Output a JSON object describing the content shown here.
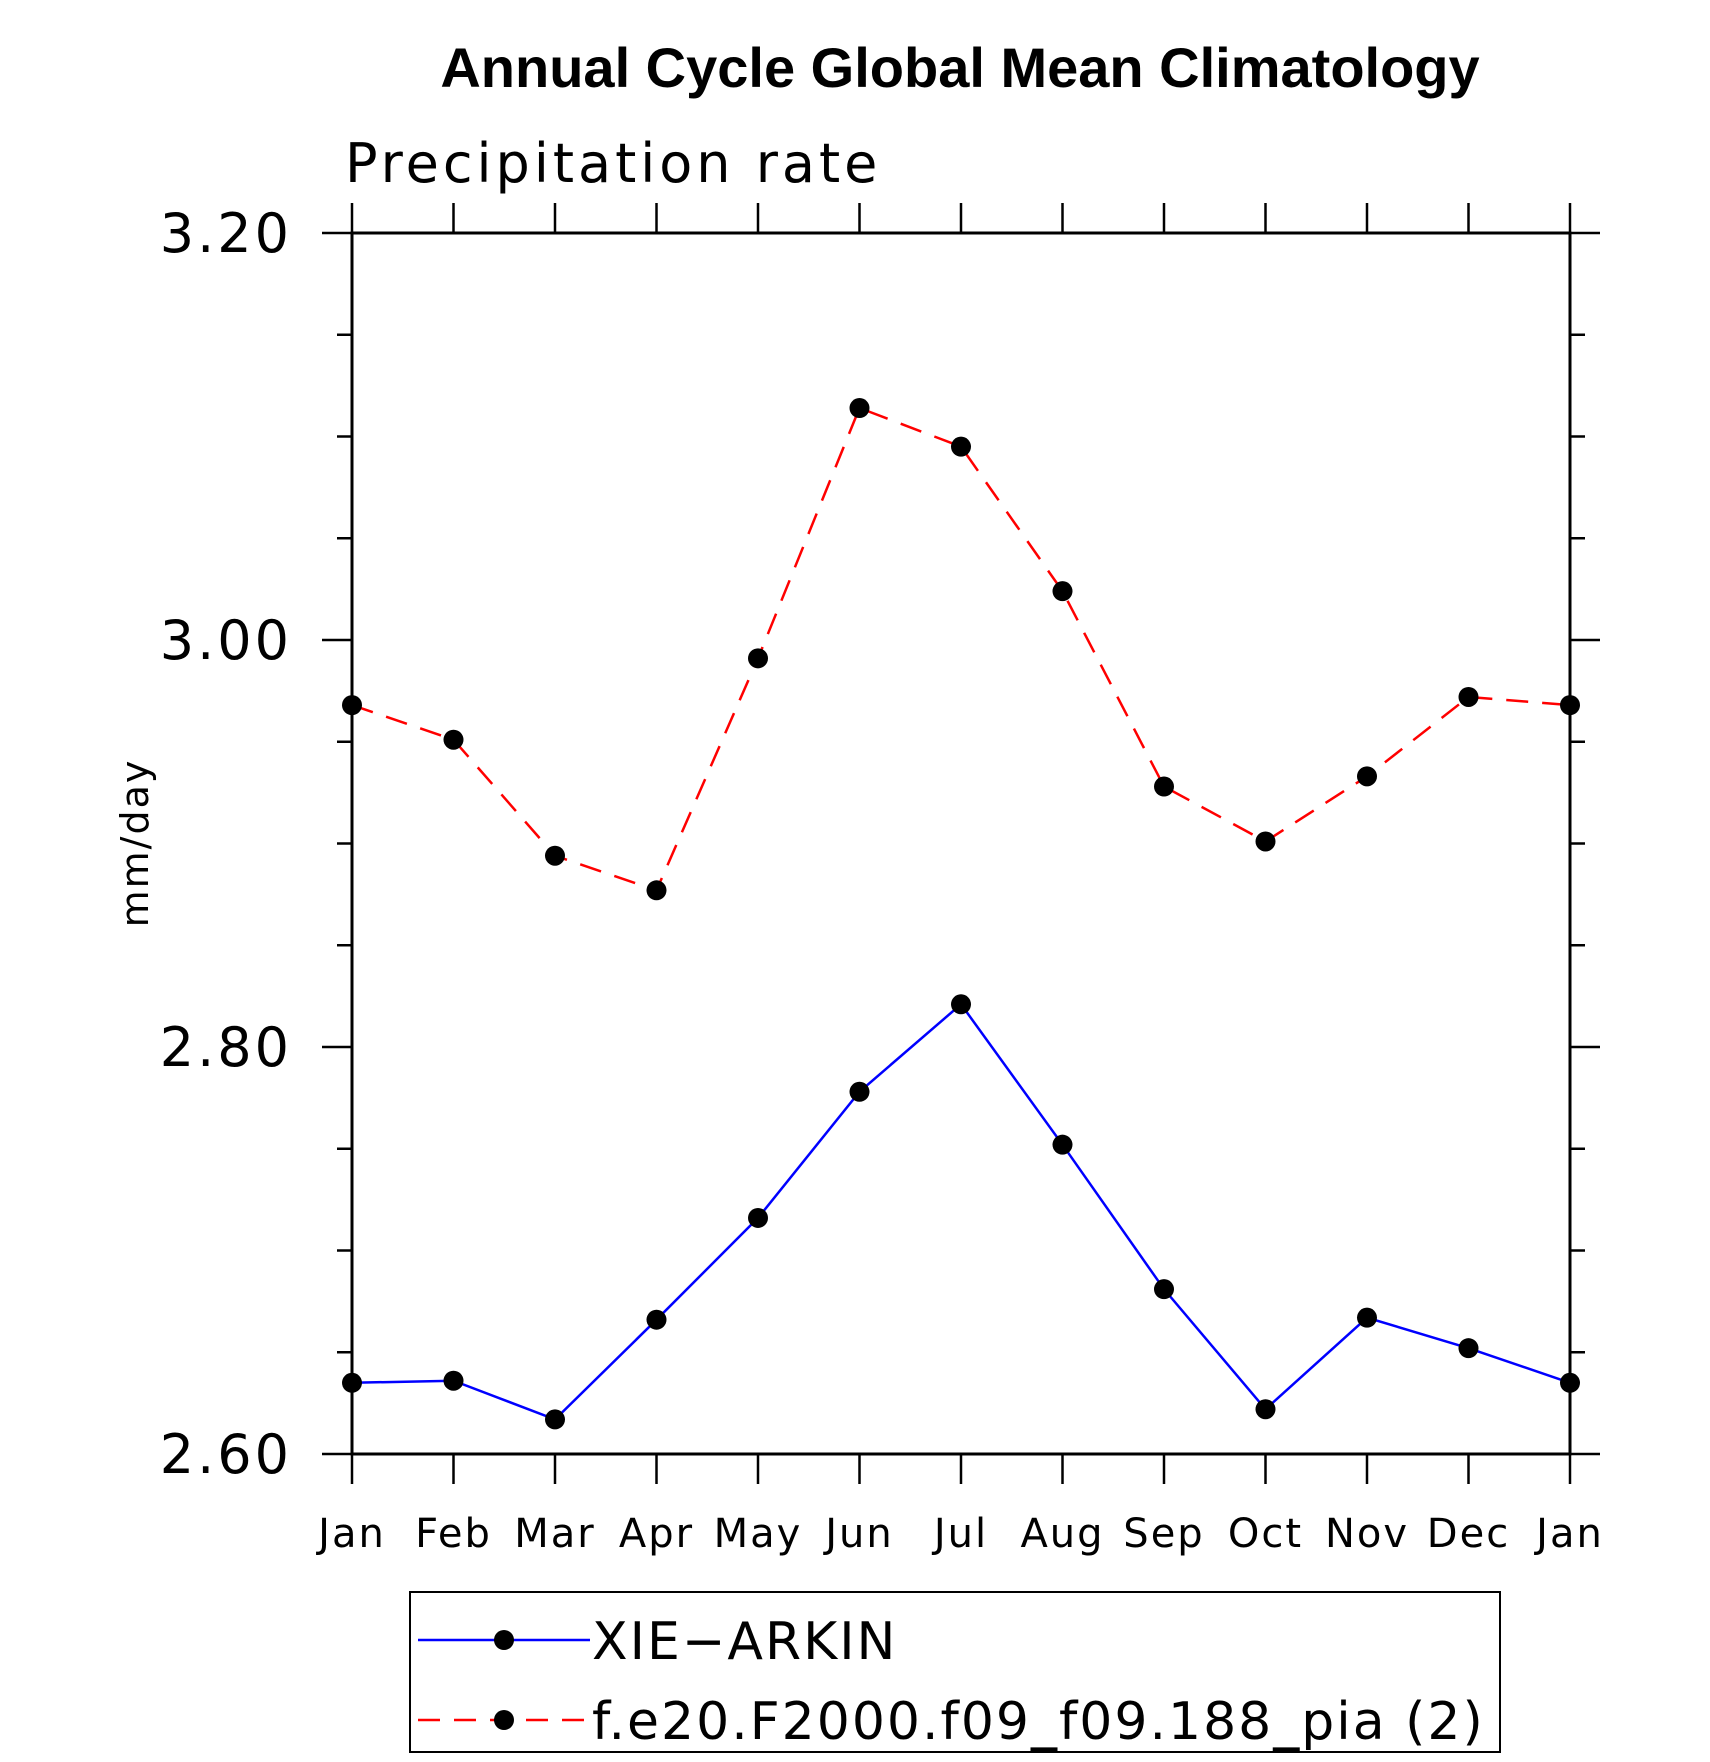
{
  "chart_data": {
    "type": "line",
    "title": "Annual Cycle Global Mean Climatology",
    "subtitle": "Precipitation rate",
    "xlabel": "",
    "ylabel": "mm/day",
    "categories": [
      "Jan",
      "Feb",
      "Mar",
      "Apr",
      "May",
      "Jun",
      "Jul",
      "Aug",
      "Sep",
      "Oct",
      "Nov",
      "Dec",
      "Jan"
    ],
    "ylim": [
      2.6,
      3.2
    ],
    "yticks": [
      "2.60",
      "2.80",
      "3.00",
      "3.20"
    ],
    "grid": false,
    "legend_position": "bottom",
    "series": [
      {
        "name": "XIE−ARKIN",
        "color": "#0000ff",
        "line_style": "solid",
        "marker": "filled-circle",
        "values": [
          2.635,
          2.636,
          2.617,
          2.666,
          2.716,
          2.778,
          2.821,
          2.752,
          2.681,
          2.622,
          2.667,
          2.652,
          2.635
        ]
      },
      {
        "name": "f.e20.F2000.f09_f09.188_pia (2)",
        "color": "#ff0000",
        "line_style": "dashed",
        "marker": "filled-circle",
        "values": [
          2.968,
          2.951,
          2.894,
          2.877,
          2.991,
          3.114,
          3.095,
          3.024,
          2.928,
          2.901,
          2.933,
          2.972,
          2.968
        ]
      }
    ]
  }
}
